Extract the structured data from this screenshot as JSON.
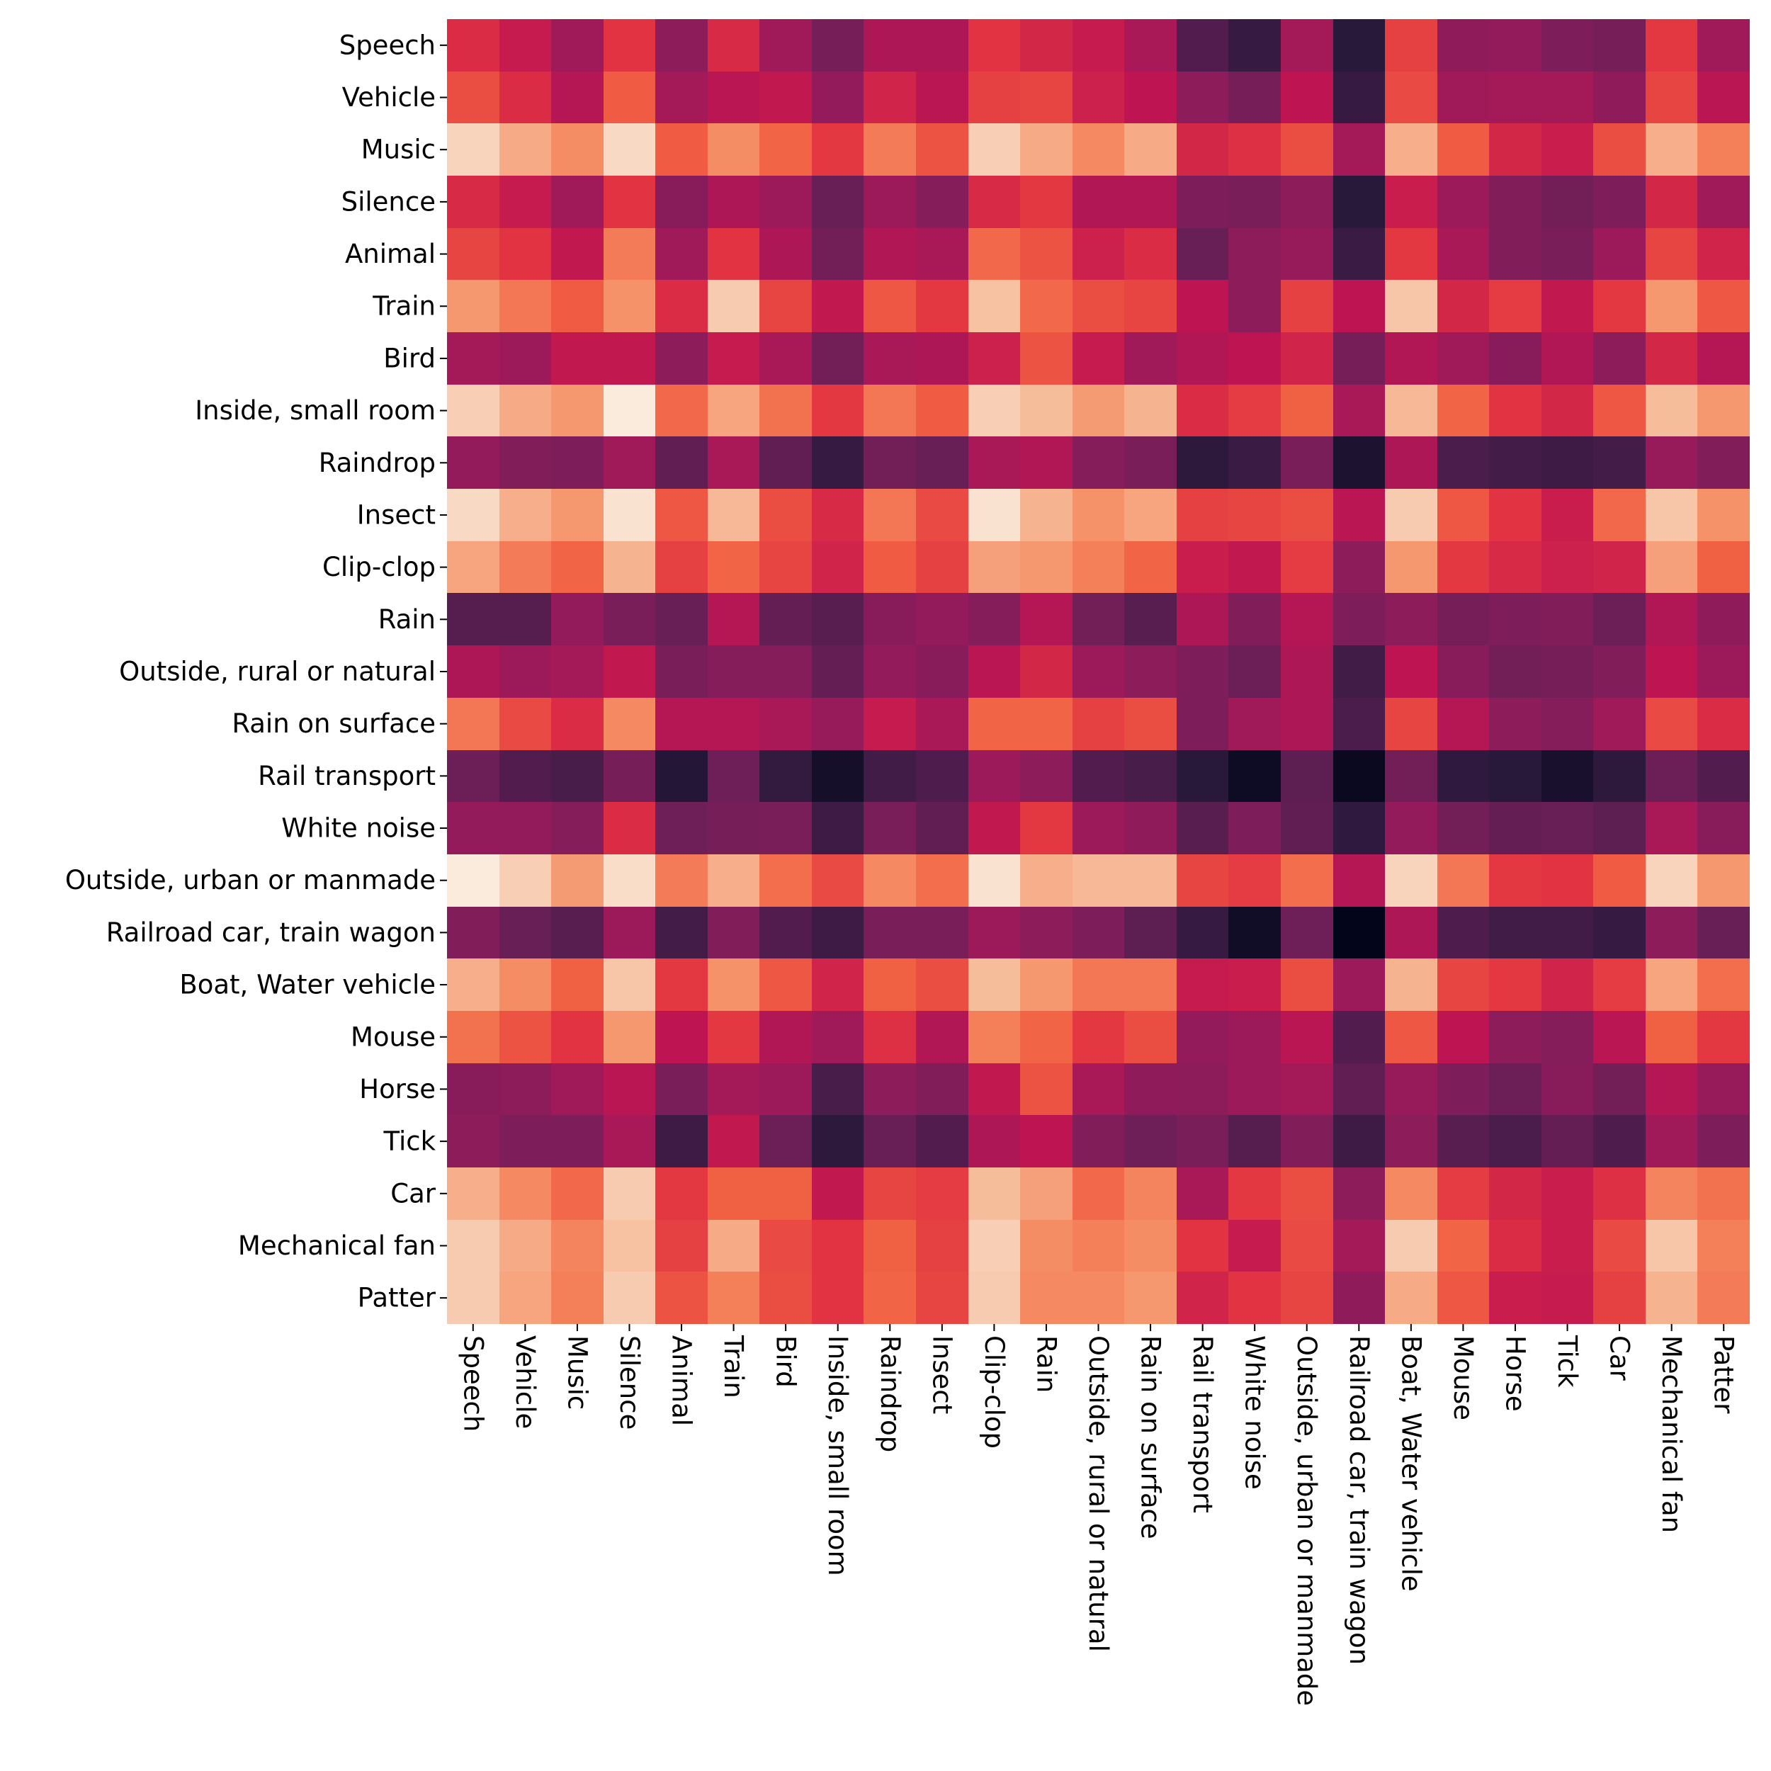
{
  "chart_data": {
    "type": "heatmap",
    "title": "",
    "xlabel": "",
    "ylabel": "",
    "colormap": "rocket",
    "value_range": [
      0,
      1
    ],
    "colorbar": false,
    "grid": false,
    "row_labels": [
      "Speech",
      "Vehicle",
      "Music",
      "Silence",
      "Animal",
      "Train",
      "Bird",
      "Inside, small room",
      "Raindrop",
      "Insect",
      "Clip-clop",
      "Rain",
      "Outside, rural or natural",
      "Rain on surface",
      "Rail transport",
      "White noise",
      "Outside, urban or manmade",
      "Railroad car, train wagon",
      "Boat, Water vehicle",
      "Mouse",
      "Horse",
      "Tick",
      "Car",
      "Mechanical fan",
      "Patter"
    ],
    "col_labels": [
      "Speech",
      "Vehicle",
      "Music",
      "Silence",
      "Animal",
      "Train",
      "Bird",
      "Inside, small room",
      "Raindrop",
      "Insect",
      "Clip-clop",
      "Rain",
      "Outside, rural or natural",
      "Rain on surface",
      "Rail transport",
      "White noise",
      "Outside, urban or manmade",
      "Railroad car, train wagon",
      "Boat, Water vehicle",
      "Mouse",
      "Horse",
      "Tick",
      "Car",
      "Mechanical fan",
      "Patter"
    ],
    "values": [
      [
        0.58,
        0.52,
        0.43,
        0.6,
        0.38,
        0.57,
        0.43,
        0.32,
        0.46,
        0.46,
        0.6,
        0.56,
        0.52,
        0.45,
        0.22,
        0.14,
        0.44,
        0.1,
        0.63,
        0.39,
        0.4,
        0.34,
        0.32,
        0.61,
        0.43
      ],
      [
        0.66,
        0.58,
        0.48,
        0.69,
        0.44,
        0.49,
        0.51,
        0.4,
        0.55,
        0.49,
        0.63,
        0.64,
        0.54,
        0.5,
        0.38,
        0.32,
        0.5,
        0.14,
        0.65,
        0.43,
        0.44,
        0.44,
        0.39,
        0.64,
        0.49
      ],
      [
        0.95,
        0.86,
        0.8,
        0.96,
        0.69,
        0.8,
        0.71,
        0.61,
        0.76,
        0.67,
        0.94,
        0.86,
        0.79,
        0.86,
        0.56,
        0.59,
        0.66,
        0.44,
        0.87,
        0.69,
        0.56,
        0.53,
        0.66,
        0.87,
        0.77
      ],
      [
        0.57,
        0.52,
        0.43,
        0.6,
        0.37,
        0.46,
        0.42,
        0.28,
        0.42,
        0.36,
        0.57,
        0.61,
        0.47,
        0.47,
        0.34,
        0.33,
        0.38,
        0.1,
        0.53,
        0.42,
        0.35,
        0.31,
        0.34,
        0.56,
        0.43
      ],
      [
        0.64,
        0.6,
        0.51,
        0.76,
        0.43,
        0.6,
        0.46,
        0.31,
        0.47,
        0.45,
        0.72,
        0.67,
        0.54,
        0.58,
        0.28,
        0.38,
        0.41,
        0.15,
        0.61,
        0.45,
        0.35,
        0.33,
        0.42,
        0.64,
        0.55
      ],
      [
        0.82,
        0.75,
        0.69,
        0.81,
        0.58,
        0.93,
        0.64,
        0.51,
        0.68,
        0.61,
        0.91,
        0.72,
        0.66,
        0.64,
        0.5,
        0.38,
        0.63,
        0.5,
        0.92,
        0.56,
        0.62,
        0.51,
        0.61,
        0.82,
        0.68
      ],
      [
        0.44,
        0.42,
        0.51,
        0.51,
        0.38,
        0.52,
        0.45,
        0.31,
        0.45,
        0.46,
        0.54,
        0.67,
        0.52,
        0.43,
        0.47,
        0.5,
        0.55,
        0.32,
        0.47,
        0.43,
        0.37,
        0.47,
        0.38,
        0.56,
        0.48
      ],
      [
        0.94,
        0.86,
        0.82,
        1.0,
        0.72,
        0.85,
        0.74,
        0.61,
        0.75,
        0.69,
        0.94,
        0.9,
        0.83,
        0.88,
        0.58,
        0.62,
        0.7,
        0.45,
        0.89,
        0.71,
        0.6,
        0.56,
        0.68,
        0.9,
        0.82
      ],
      [
        0.4,
        0.35,
        0.34,
        0.43,
        0.26,
        0.45,
        0.26,
        0.14,
        0.31,
        0.28,
        0.45,
        0.47,
        0.36,
        0.33,
        0.11,
        0.15,
        0.33,
        0.07,
        0.46,
        0.2,
        0.18,
        0.16,
        0.18,
        0.41,
        0.35
      ],
      [
        0.96,
        0.87,
        0.82,
        0.98,
        0.68,
        0.89,
        0.66,
        0.57,
        0.75,
        0.65,
        0.98,
        0.88,
        0.81,
        0.85,
        0.63,
        0.64,
        0.66,
        0.49,
        0.93,
        0.68,
        0.6,
        0.53,
        0.72,
        0.92,
        0.81
      ],
      [
        0.85,
        0.76,
        0.71,
        0.88,
        0.63,
        0.71,
        0.64,
        0.55,
        0.69,
        0.63,
        0.84,
        0.82,
        0.77,
        0.71,
        0.53,
        0.51,
        0.62,
        0.38,
        0.82,
        0.61,
        0.57,
        0.54,
        0.55,
        0.84,
        0.7
      ],
      [
        0.23,
        0.23,
        0.4,
        0.33,
        0.28,
        0.48,
        0.27,
        0.24,
        0.37,
        0.4,
        0.36,
        0.48,
        0.31,
        0.24,
        0.46,
        0.35,
        0.48,
        0.34,
        0.38,
        0.32,
        0.34,
        0.35,
        0.29,
        0.47,
        0.39
      ],
      [
        0.46,
        0.42,
        0.44,
        0.51,
        0.33,
        0.36,
        0.36,
        0.27,
        0.4,
        0.37,
        0.49,
        0.56,
        0.42,
        0.38,
        0.34,
        0.29,
        0.46,
        0.17,
        0.5,
        0.37,
        0.31,
        0.32,
        0.35,
        0.5,
        0.42
      ],
      [
        0.75,
        0.65,
        0.58,
        0.79,
        0.48,
        0.48,
        0.45,
        0.41,
        0.52,
        0.45,
        0.71,
        0.71,
        0.63,
        0.66,
        0.34,
        0.43,
        0.46,
        0.2,
        0.64,
        0.48,
        0.38,
        0.36,
        0.43,
        0.65,
        0.58
      ],
      [
        0.29,
        0.22,
        0.19,
        0.32,
        0.09,
        0.3,
        0.13,
        0.05,
        0.17,
        0.21,
        0.42,
        0.38,
        0.22,
        0.19,
        0.1,
        0.03,
        0.25,
        0.02,
        0.31,
        0.12,
        0.1,
        0.06,
        0.11,
        0.29,
        0.22
      ],
      [
        0.4,
        0.4,
        0.36,
        0.58,
        0.3,
        0.32,
        0.33,
        0.16,
        0.33,
        0.26,
        0.51,
        0.61,
        0.42,
        0.39,
        0.24,
        0.34,
        0.26,
        0.12,
        0.4,
        0.31,
        0.27,
        0.28,
        0.25,
        0.45,
        0.37
      ],
      [
        1.0,
        0.94,
        0.83,
        0.97,
        0.76,
        0.87,
        0.73,
        0.65,
        0.79,
        0.73,
        0.98,
        0.87,
        0.89,
        0.89,
        0.64,
        0.62,
        0.73,
        0.48,
        0.95,
        0.75,
        0.61,
        0.6,
        0.69,
        0.95,
        0.82
      ],
      [
        0.35,
        0.28,
        0.24,
        0.42,
        0.18,
        0.35,
        0.22,
        0.16,
        0.33,
        0.33,
        0.42,
        0.38,
        0.34,
        0.25,
        0.14,
        0.04,
        0.3,
        0.0,
        0.46,
        0.21,
        0.17,
        0.17,
        0.14,
        0.38,
        0.28
      ],
      [
        0.87,
        0.8,
        0.7,
        0.92,
        0.61,
        0.81,
        0.68,
        0.55,
        0.7,
        0.66,
        0.9,
        0.82,
        0.75,
        0.75,
        0.52,
        0.53,
        0.66,
        0.42,
        0.88,
        0.64,
        0.61,
        0.55,
        0.62,
        0.85,
        0.73
      ],
      [
        0.74,
        0.67,
        0.6,
        0.82,
        0.5,
        0.61,
        0.47,
        0.43,
        0.59,
        0.47,
        0.77,
        0.71,
        0.61,
        0.66,
        0.4,
        0.42,
        0.49,
        0.22,
        0.68,
        0.5,
        0.38,
        0.36,
        0.49,
        0.7,
        0.61
      ],
      [
        0.37,
        0.38,
        0.43,
        0.49,
        0.33,
        0.44,
        0.42,
        0.19,
        0.38,
        0.35,
        0.51,
        0.67,
        0.45,
        0.39,
        0.38,
        0.42,
        0.44,
        0.26,
        0.41,
        0.34,
        0.29,
        0.37,
        0.31,
        0.48,
        0.41
      ],
      [
        0.38,
        0.34,
        0.34,
        0.45,
        0.16,
        0.51,
        0.29,
        0.11,
        0.28,
        0.22,
        0.46,
        0.5,
        0.35,
        0.3,
        0.33,
        0.23,
        0.35,
        0.16,
        0.38,
        0.24,
        0.2,
        0.27,
        0.21,
        0.43,
        0.34
      ],
      [
        0.87,
        0.79,
        0.72,
        0.93,
        0.61,
        0.7,
        0.7,
        0.51,
        0.64,
        0.62,
        0.9,
        0.84,
        0.72,
        0.78,
        0.45,
        0.61,
        0.66,
        0.38,
        0.79,
        0.62,
        0.56,
        0.53,
        0.59,
        0.78,
        0.74
      ],
      [
        0.93,
        0.86,
        0.78,
        0.91,
        0.63,
        0.86,
        0.65,
        0.6,
        0.7,
        0.63,
        0.94,
        0.8,
        0.77,
        0.8,
        0.6,
        0.52,
        0.65,
        0.44,
        0.93,
        0.71,
        0.58,
        0.53,
        0.65,
        0.92,
        0.77
      ],
      [
        0.93,
        0.85,
        0.77,
        0.93,
        0.67,
        0.77,
        0.66,
        0.6,
        0.71,
        0.64,
        0.93,
        0.79,
        0.79,
        0.82,
        0.55,
        0.6,
        0.64,
        0.39,
        0.86,
        0.68,
        0.53,
        0.52,
        0.63,
        0.88,
        0.76
      ]
    ]
  }
}
